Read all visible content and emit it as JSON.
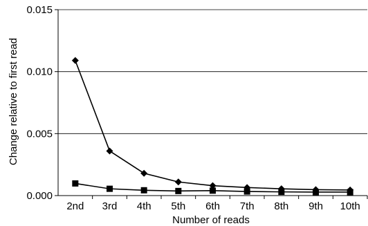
{
  "chart_data": {
    "type": "line",
    "xlabel": "Number of reads",
    "ylabel": "Change relative to first read",
    "categories": [
      "2nd",
      "3rd",
      "4th",
      "5th",
      "6th",
      "7th",
      "8th",
      "9th",
      "10th"
    ],
    "ylim": [
      0,
      0.015
    ],
    "yticks": [
      "0.000",
      "0.005",
      "0.010",
      "0.015"
    ],
    "grid": true,
    "series": [
      {
        "marker": "diamond",
        "values": [
          0.0109,
          0.0036,
          0.0018,
          0.0011,
          0.0008,
          0.00065,
          0.00055,
          0.00048,
          0.00045
        ]
      },
      {
        "marker": "square",
        "values": [
          0.00098,
          0.00055,
          0.00043,
          0.00037,
          0.0004,
          0.00033,
          0.0003,
          0.00028,
          0.00028
        ]
      }
    ]
  }
}
